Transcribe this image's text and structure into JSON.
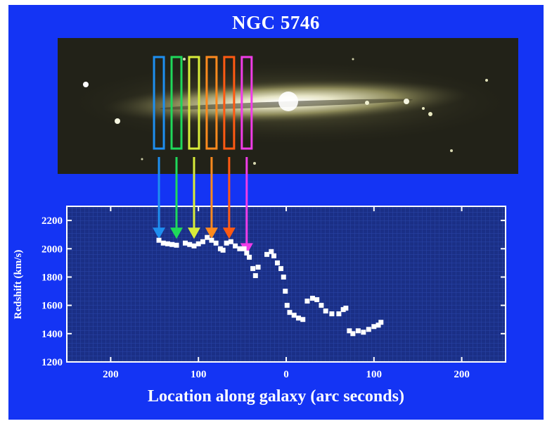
{
  "chart_data": {
    "type": "scatter",
    "title": "NGC 5746",
    "xlabel": "Location along galaxy (arc seconds)",
    "ylabel": "Redshift (km/s)",
    "xlim": [
      250,
      -250
    ],
    "ylim": [
      1200,
      2300
    ],
    "x_ticks": [
      200,
      100,
      0,
      100,
      200
    ],
    "y_ticks": [
      1200,
      1400,
      1600,
      1800,
      2000,
      2200
    ],
    "grid": true,
    "points": [
      {
        "x": 145,
        "y": 2060
      },
      {
        "x": 140,
        "y": 2040
      },
      {
        "x": 135,
        "y": 2035
      },
      {
        "x": 130,
        "y": 2030
      },
      {
        "x": 125,
        "y": 2025
      },
      {
        "x": 115,
        "y": 2040
      },
      {
        "x": 110,
        "y": 2030
      },
      {
        "x": 105,
        "y": 2020
      },
      {
        "x": 100,
        "y": 2035
      },
      {
        "x": 95,
        "y": 2050
      },
      {
        "x": 90,
        "y": 2080
      },
      {
        "x": 85,
        "y": 2060
      },
      {
        "x": 80,
        "y": 2040
      },
      {
        "x": 75,
        "y": 2000
      },
      {
        "x": 72,
        "y": 1990
      },
      {
        "x": 68,
        "y": 2040
      },
      {
        "x": 63,
        "y": 2050
      },
      {
        "x": 58,
        "y": 2020
      },
      {
        "x": 53,
        "y": 2000
      },
      {
        "x": 48,
        "y": 2000
      },
      {
        "x": 45,
        "y": 1970
      },
      {
        "x": 42,
        "y": 1940
      },
      {
        "x": 38,
        "y": 1860
      },
      {
        "x": 35,
        "y": 1810
      },
      {
        "x": 32,
        "y": 1870
      },
      {
        "x": 22,
        "y": 1960
      },
      {
        "x": 17,
        "y": 1980
      },
      {
        "x": 14,
        "y": 1950
      },
      {
        "x": 10,
        "y": 1900
      },
      {
        "x": 6,
        "y": 1860
      },
      {
        "x": 3,
        "y": 1800
      },
      {
        "x": 1,
        "y": 1700
      },
      {
        "x": -1,
        "y": 1600
      },
      {
        "x": -4,
        "y": 1550
      },
      {
        "x": -9,
        "y": 1530
      },
      {
        "x": -14,
        "y": 1510
      },
      {
        "x": -19,
        "y": 1500
      },
      {
        "x": -24,
        "y": 1630
      },
      {
        "x": -30,
        "y": 1650
      },
      {
        "x": -35,
        "y": 1640
      },
      {
        "x": -40,
        "y": 1600
      },
      {
        "x": -45,
        "y": 1560
      },
      {
        "x": -52,
        "y": 1540
      },
      {
        "x": -60,
        "y": 1540
      },
      {
        "x": -65,
        "y": 1570
      },
      {
        "x": -68,
        "y": 1580
      },
      {
        "x": -72,
        "y": 1420
      },
      {
        "x": -76,
        "y": 1400
      },
      {
        "x": -82,
        "y": 1420
      },
      {
        "x": -88,
        "y": 1410
      },
      {
        "x": -94,
        "y": 1430
      },
      {
        "x": -100,
        "y": 1450
      },
      {
        "x": -105,
        "y": 1460
      },
      {
        "x": -108,
        "y": 1480
      }
    ],
    "slits": [
      {
        "x": 145,
        "y": 2060,
        "color": "#1e8ff0"
      },
      {
        "x": 125,
        "y": 2060,
        "color": "#1fd85a"
      },
      {
        "x": 105,
        "y": 2060,
        "color": "#d8ec3a"
      },
      {
        "x": 85,
        "y": 2060,
        "color": "#ff8a1e"
      },
      {
        "x": 65,
        "y": 2060,
        "color": "#ff5a12"
      },
      {
        "x": 45,
        "y": 1950,
        "color": "#f03ce8"
      }
    ]
  },
  "colors": {
    "panel": "#1434f4",
    "plot_bg": "#1a2f86",
    "point": "#ffffff"
  }
}
